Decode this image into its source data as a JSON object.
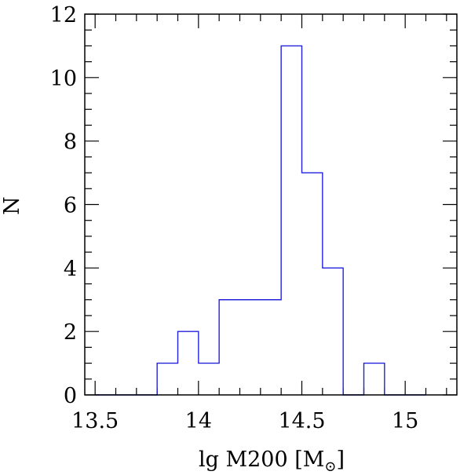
{
  "chart_data": {
    "type": "histogram",
    "bin_edges": [
      13.5,
      13.6,
      13.7,
      13.8,
      13.9,
      14.0,
      14.1,
      14.2,
      14.3,
      14.4,
      14.5,
      14.6,
      14.7,
      14.8,
      14.9,
      15.0,
      15.1
    ],
    "counts": [
      0,
      0,
      0,
      1,
      2,
      1,
      3,
      3,
      3,
      11,
      7,
      4,
      0,
      1,
      0,
      0
    ],
    "bin_width": 0.1,
    "xlim": [
      13.45,
      15.25
    ],
    "ylim": [
      0,
      12
    ],
    "x_ticks_major": [
      13.5,
      14,
      14.5,
      15
    ],
    "x_tick_labels": [
      "13.5",
      "14",
      "14.5",
      "15"
    ],
    "y_ticks_major": [
      0,
      2,
      4,
      6,
      8,
      10,
      12
    ],
    "y_tick_labels": [
      "0",
      "2",
      "4",
      "6",
      "8",
      "10",
      "12"
    ],
    "xlabel": "lg M200 [M",
    "xlabel_suffix": "]",
    "xlabel_subscript": "⊙",
    "ylabel": "N",
    "line_color": "#2222dd",
    "grid": false
  }
}
